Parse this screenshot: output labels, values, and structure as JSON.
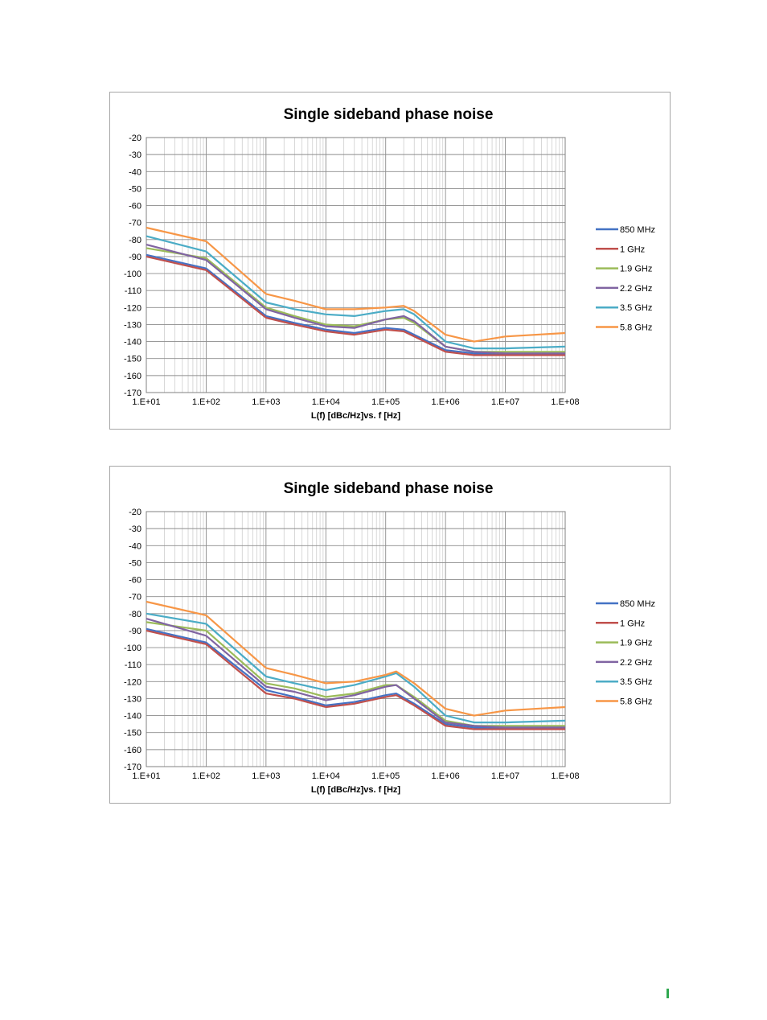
{
  "chart_data": [
    {
      "type": "line",
      "title": "Single sideband phase noise",
      "xlabel": "L(f) [dBc/Hz]vs. f [Hz]",
      "ylabel": "",
      "x_scale": "log",
      "xlim": [
        10,
        100000000
      ],
      "ylim": [
        -170,
        -20
      ],
      "grid": true,
      "legend_position": "right",
      "x_tick_labels": [
        "1.E+01",
        "1.E+02",
        "1.E+03",
        "1.E+04",
        "1.E+05",
        "1.E+06",
        "1.E+07",
        "1.E+08"
      ],
      "y_tick_labels": [
        "-20",
        "-30",
        "-40",
        "-50",
        "-60",
        "-70",
        "-80",
        "-90",
        "-100",
        "-110",
        "-120",
        "-130",
        "-140",
        "-150",
        "-160",
        "-170"
      ],
      "x": [
        10,
        100,
        1000,
        3000,
        10000,
        30000,
        100000,
        200000,
        300000,
        1000000,
        3000000,
        10000000,
        100000000
      ],
      "series": [
        {
          "name": "850 MHz",
          "color": "#4472c4",
          "values": [
            -89,
            -97,
            -125,
            -129,
            -133,
            -135,
            -132,
            -133,
            -136,
            -145,
            -147,
            -147,
            -147
          ]
        },
        {
          "name": "1 GHz",
          "color": "#c0504d",
          "values": [
            -90,
            -98,
            -126,
            -130,
            -134,
            -136,
            -133,
            -134,
            -137,
            -146,
            -148,
            -148,
            -148
          ]
        },
        {
          "name": "1.9 GHz",
          "color": "#9bbb59",
          "values": [
            -85,
            -91,
            -120,
            -125,
            -130,
            -131,
            -127,
            -126,
            -129,
            -143,
            -146,
            -146,
            -146
          ]
        },
        {
          "name": "2.2 GHz",
          "color": "#8064a2",
          "values": [
            -83,
            -92,
            -121,
            -126,
            -131,
            -132,
            -127,
            -125,
            -128,
            -143,
            -146,
            -147,
            -147
          ]
        },
        {
          "name": "3.5 GHz",
          "color": "#4bacc6",
          "values": [
            -78,
            -87,
            -117,
            -121,
            -124,
            -125,
            -122,
            -121,
            -124,
            -140,
            -144,
            -144,
            -143
          ]
        },
        {
          "name": "5.8 GHz",
          "color": "#f79646",
          "values": [
            -73,
            -81,
            -112,
            -116,
            -121,
            -121,
            -120,
            -119,
            -122,
            -136,
            -140,
            -137,
            -135
          ]
        }
      ]
    },
    {
      "type": "line",
      "title": "Single sideband phase noise",
      "xlabel": "L(f) [dBc/Hz]vs. f [Hz]",
      "ylabel": "",
      "x_scale": "log",
      "xlim": [
        10,
        100000000
      ],
      "ylim": [
        -170,
        -20
      ],
      "grid": true,
      "legend_position": "right",
      "x_tick_labels": [
        "1.E+01",
        "1.E+02",
        "1.E+03",
        "1.E+04",
        "1.E+05",
        "1.E+06",
        "1.E+07",
        "1.E+08"
      ],
      "y_tick_labels": [
        "-20",
        "-30",
        "-40",
        "-50",
        "-60",
        "-70",
        "-80",
        "-90",
        "-100",
        "-110",
        "-120",
        "-130",
        "-140",
        "-150",
        "-160",
        "-170"
      ],
      "x": [
        10,
        100,
        1000,
        3000,
        10000,
        30000,
        100000,
        150000,
        300000,
        1000000,
        3000000,
        10000000,
        100000000
      ],
      "series": [
        {
          "name": "850 MHz",
          "color": "#4472c4",
          "values": [
            -89,
            -97,
            -125,
            -129,
            -134,
            -132,
            -128,
            -127,
            -133,
            -145,
            -147,
            -147,
            -147
          ]
        },
        {
          "name": "1 GHz",
          "color": "#c0504d",
          "values": [
            -90,
            -98,
            -127,
            -130,
            -135,
            -133,
            -129,
            -128,
            -134,
            -146,
            -148,
            -148,
            -148
          ]
        },
        {
          "name": "1.9 GHz",
          "color": "#9bbb59",
          "values": [
            -85,
            -90,
            -121,
            -124,
            -129,
            -127,
            -122,
            -122,
            -129,
            -143,
            -146,
            -146,
            -146
          ]
        },
        {
          "name": "2.2 GHz",
          "color": "#8064a2",
          "values": [
            -83,
            -93,
            -123,
            -126,
            -131,
            -128,
            -123,
            -122,
            -130,
            -144,
            -146,
            -147,
            -147
          ]
        },
        {
          "name": "3.5 GHz",
          "color": "#4bacc6",
          "values": [
            -80,
            -86,
            -117,
            -121,
            -125,
            -122,
            -117,
            -115,
            -123,
            -140,
            -144,
            -144,
            -143
          ]
        },
        {
          "name": "5.8 GHz",
          "color": "#f79646",
          "values": [
            -73,
            -81,
            -112,
            -116,
            -121,
            -120,
            -116,
            -114,
            -121,
            -136,
            -140,
            -137,
            -135
          ]
        }
      ]
    }
  ]
}
